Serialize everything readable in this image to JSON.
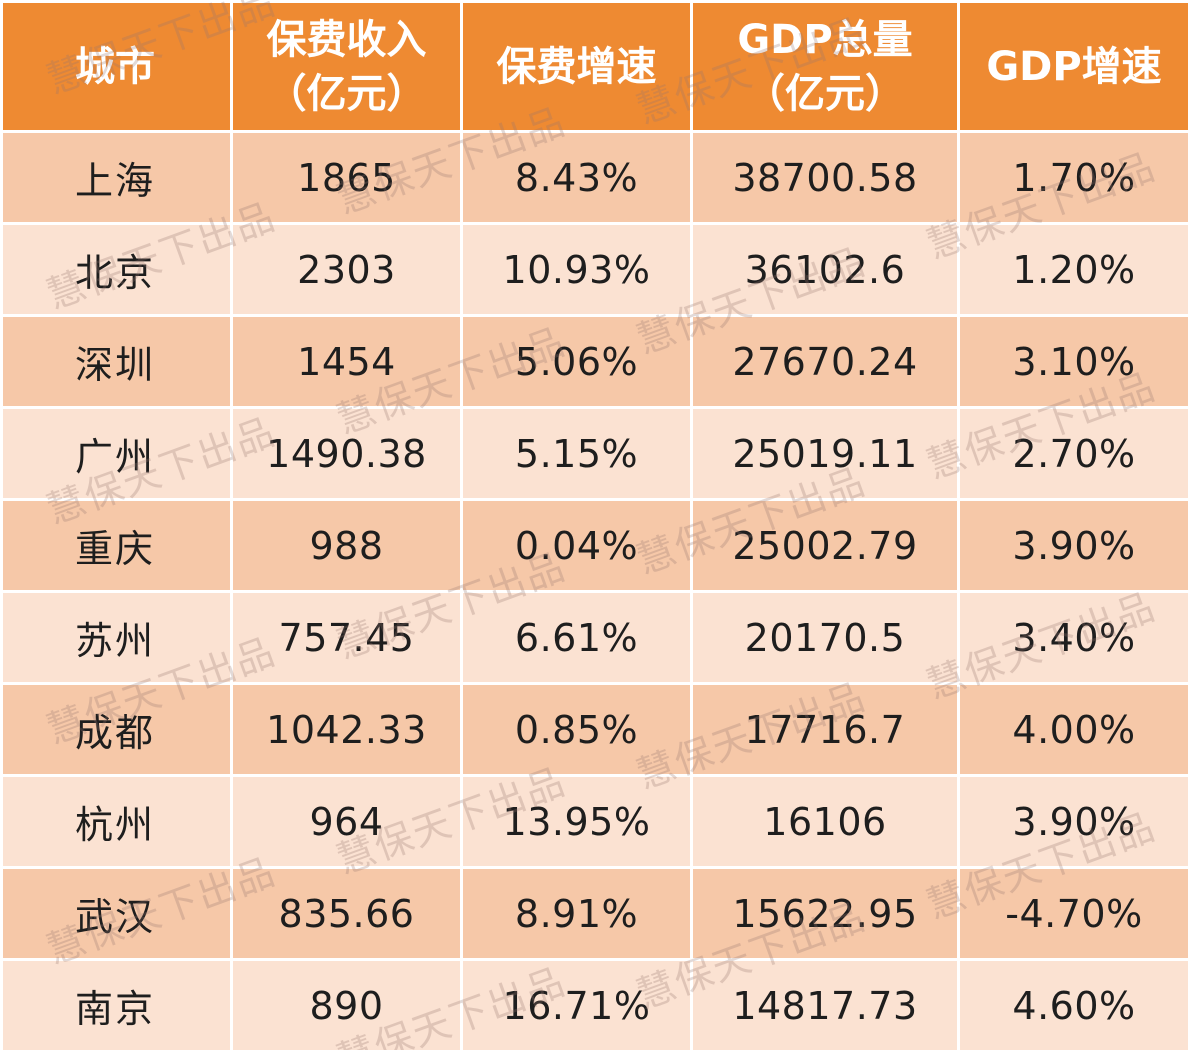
{
  "table": {
    "headers": [
      "城市",
      "保费收入\n（亿元）",
      "保费增速",
      "GDP总量\n（亿元）",
      "GDP增速"
    ],
    "header_line1": [
      "城市",
      "保费收入",
      "保费增速",
      "GDP总量",
      "GDP增速"
    ],
    "header_line2": [
      "",
      "（亿元）",
      "",
      "（亿元）",
      ""
    ],
    "rows": [
      [
        "上海",
        "1865",
        "8.43%",
        "38700.58",
        "1.70%"
      ],
      [
        "北京",
        "2303",
        "10.93%",
        "36102.6",
        "1.20%"
      ],
      [
        "深圳",
        "1454",
        "5.06%",
        "27670.24",
        "3.10%"
      ],
      [
        "广州",
        "1490.38",
        "5.15%",
        "25019.11",
        "2.70%"
      ],
      [
        "重庆",
        "988",
        "0.04%",
        "25002.79",
        "3.90%"
      ],
      [
        "苏州",
        "757.45",
        "6.61%",
        "20170.5",
        "3.40%"
      ],
      [
        "成都",
        "1042.33",
        "0.85%",
        "17716.7",
        "4.00%"
      ],
      [
        "杭州",
        "964",
        "13.95%",
        "16106",
        "3.90%"
      ],
      [
        "武汉",
        "835.66",
        "8.91%",
        "15622.95",
        "-4.70%"
      ],
      [
        "南京",
        "890",
        "16.71%",
        "14817.73",
        "4.60%"
      ]
    ]
  },
  "watermark": {
    "text": "慧保天下出品"
  },
  "colors": {
    "header_bg": "#ee8a32",
    "row_dark": "#f6c8a8",
    "row_light": "#fbe2d2"
  }
}
